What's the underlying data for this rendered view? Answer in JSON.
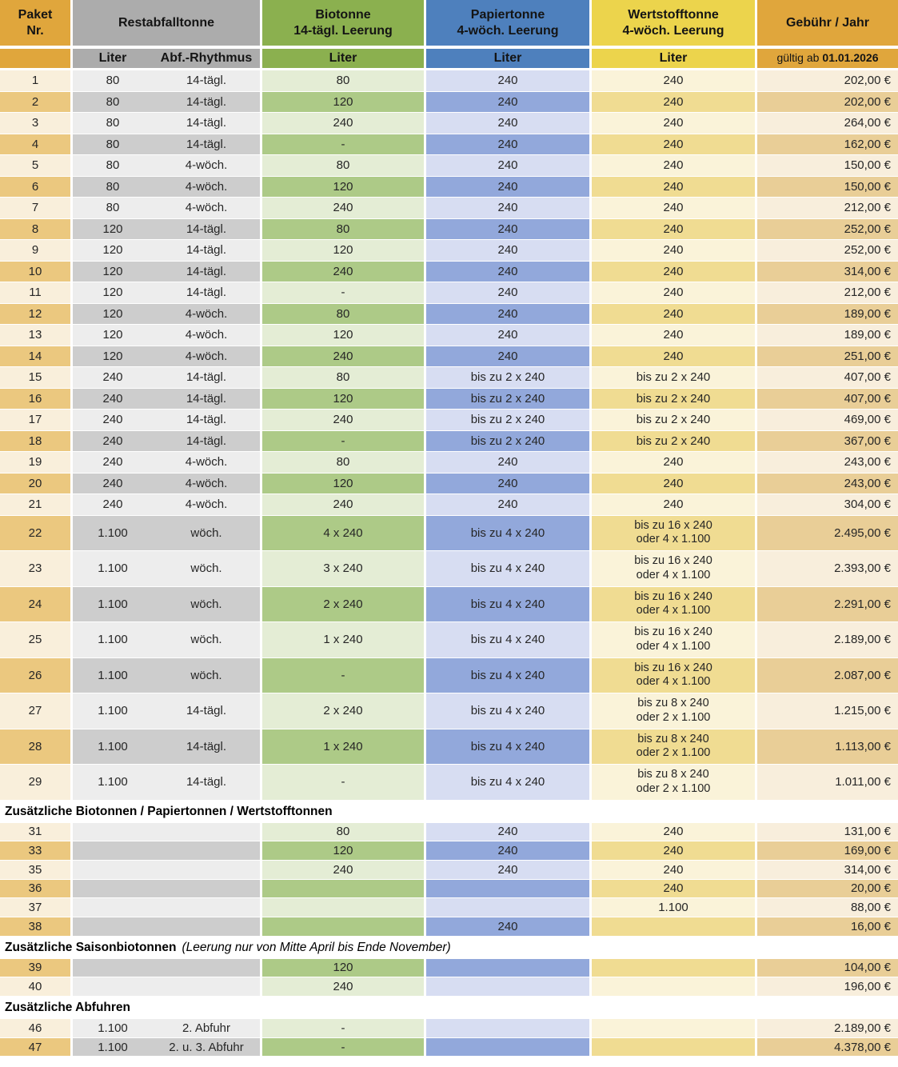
{
  "header": {
    "paket": "Paket\nNr.",
    "restabfall": "Restabfalltonne",
    "biotonne": "Biotonne\n14-tägl. Leerung",
    "papiertonne": "Papiertonne\n4-wöch. Leerung",
    "wertstofftonne": "Wertstofftonne\n4-wöch. Leerung",
    "gebuehr": "Gebühr / Jahr",
    "sub_rest_liter": "Liter",
    "sub_rest_rhythmus": "Abf.-Rhythmus",
    "sub_bio_liter": "Liter",
    "sub_papier_liter": "Liter",
    "sub_wert_liter": "Liter",
    "sub_gebuehr_prefix": "gültig ab",
    "sub_gebuehr_date": "01.01.2026"
  },
  "colors": {
    "header_orange": "#E0A63C",
    "header_gray": "#ACACAC",
    "header_green": "#8BB04F",
    "header_blue": "#4E80BD",
    "header_yellow": "#ECD44C",
    "paket_light": "#F9EFDB",
    "paket_dark": "#EBC87F",
    "gray_light": "#EDEDED",
    "gray_dark": "#CDCDCD",
    "bio_light": "#E4EDD5",
    "bio_dark": "#ADCA87",
    "papier_light": "#D7DDF2",
    "papier_dark": "#92A8DB",
    "wert_light": "#FAF3D9",
    "wert_dark": "#F0DC92",
    "fee_light": "#F8EEDC",
    "fee_dark": "#E9CE97"
  },
  "sections": [
    {
      "title": "",
      "note": "",
      "compact": false,
      "rows": [
        {
          "nr": "1",
          "liter": "80",
          "rhythmus": "14-tägl.",
          "bio": "80",
          "papier": "240",
          "wert": "240",
          "wert2": "",
          "fee": "202,00 €",
          "dark": false,
          "tall": false
        },
        {
          "nr": "2",
          "liter": "80",
          "rhythmus": "14-tägl.",
          "bio": "120",
          "papier": "240",
          "wert": "240",
          "wert2": "",
          "fee": "202,00 €",
          "dark": true,
          "tall": false
        },
        {
          "nr": "3",
          "liter": "80",
          "rhythmus": "14-tägl.",
          "bio": "240",
          "papier": "240",
          "wert": "240",
          "wert2": "",
          "fee": "264,00 €",
          "dark": false,
          "tall": false
        },
        {
          "nr": "4",
          "liter": "80",
          "rhythmus": "14-tägl.",
          "bio": "-",
          "papier": "240",
          "wert": "240",
          "wert2": "",
          "fee": "162,00 €",
          "dark": true,
          "tall": false
        },
        {
          "nr": "5",
          "liter": "80",
          "rhythmus": "4-wöch.",
          "bio": "80",
          "papier": "240",
          "wert": "240",
          "wert2": "",
          "fee": "150,00 €",
          "dark": false,
          "tall": false
        },
        {
          "nr": "6",
          "liter": "80",
          "rhythmus": "4-wöch.",
          "bio": "120",
          "papier": "240",
          "wert": "240",
          "wert2": "",
          "fee": "150,00 €",
          "dark": true,
          "tall": false
        },
        {
          "nr": "7",
          "liter": "80",
          "rhythmus": "4-wöch.",
          "bio": "240",
          "papier": "240",
          "wert": "240",
          "wert2": "",
          "fee": "212,00 €",
          "dark": false,
          "tall": false
        },
        {
          "nr": "8",
          "liter": "120",
          "rhythmus": "14-tägl.",
          "bio": "80",
          "papier": "240",
          "wert": "240",
          "wert2": "",
          "fee": "252,00 €",
          "dark": true,
          "tall": false
        },
        {
          "nr": "9",
          "liter": "120",
          "rhythmus": "14-tägl.",
          "bio": "120",
          "papier": "240",
          "wert": "240",
          "wert2": "",
          "fee": "252,00 €",
          "dark": false,
          "tall": false
        },
        {
          "nr": "10",
          "liter": "120",
          "rhythmus": "14-tägl.",
          "bio": "240",
          "papier": "240",
          "wert": "240",
          "wert2": "",
          "fee": "314,00 €",
          "dark": true,
          "tall": false
        },
        {
          "nr": "11",
          "liter": "120",
          "rhythmus": "14-tägl.",
          "bio": "-",
          "papier": "240",
          "wert": "240",
          "wert2": "",
          "fee": "212,00 €",
          "dark": false,
          "tall": false
        },
        {
          "nr": "12",
          "liter": "120",
          "rhythmus": "4-wöch.",
          "bio": "80",
          "papier": "240",
          "wert": "240",
          "wert2": "",
          "fee": "189,00 €",
          "dark": true,
          "tall": false
        },
        {
          "nr": "13",
          "liter": "120",
          "rhythmus": "4-wöch.",
          "bio": "120",
          "papier": "240",
          "wert": "240",
          "wert2": "",
          "fee": "189,00 €",
          "dark": false,
          "tall": false
        },
        {
          "nr": "14",
          "liter": "120",
          "rhythmus": "4-wöch.",
          "bio": "240",
          "papier": "240",
          "wert": "240",
          "wert2": "",
          "fee": "251,00 €",
          "dark": true,
          "tall": false
        },
        {
          "nr": "15",
          "liter": "240",
          "rhythmus": "14-tägl.",
          "bio": "80",
          "papier": "bis zu 2 x 240",
          "wert": "bis zu 2 x 240",
          "wert2": "",
          "fee": "407,00 €",
          "dark": false,
          "tall": false
        },
        {
          "nr": "16",
          "liter": "240",
          "rhythmus": "14-tägl.",
          "bio": "120",
          "papier": "bis zu 2 x 240",
          "wert": "bis zu 2 x 240",
          "wert2": "",
          "fee": "407,00 €",
          "dark": true,
          "tall": false
        },
        {
          "nr": "17",
          "liter": "240",
          "rhythmus": "14-tägl.",
          "bio": "240",
          "papier": "bis zu 2 x 240",
          "wert": "bis zu 2 x 240",
          "wert2": "",
          "fee": "469,00 €",
          "dark": false,
          "tall": false
        },
        {
          "nr": "18",
          "liter": "240",
          "rhythmus": "14-tägl.",
          "bio": "-",
          "papier": "bis zu 2 x 240",
          "wert": "bis zu 2 x 240",
          "wert2": "",
          "fee": "367,00 €",
          "dark": true,
          "tall": false
        },
        {
          "nr": "19",
          "liter": "240",
          "rhythmus": "4-wöch.",
          "bio": "80",
          "papier": "240",
          "wert": "240",
          "wert2": "",
          "fee": "243,00 €",
          "dark": false,
          "tall": false
        },
        {
          "nr": "20",
          "liter": "240",
          "rhythmus": "4-wöch.",
          "bio": "120",
          "papier": "240",
          "wert": "240",
          "wert2": "",
          "fee": "243,00 €",
          "dark": true,
          "tall": false
        },
        {
          "nr": "21",
          "liter": "240",
          "rhythmus": "4-wöch.",
          "bio": "240",
          "papier": "240",
          "wert": "240",
          "wert2": "",
          "fee": "304,00 €",
          "dark": false,
          "tall": false
        },
        {
          "nr": "22",
          "liter": "1.100",
          "rhythmus": "wöch.",
          "bio": "4 x 240",
          "papier": "bis zu 4 x 240",
          "wert": "bis zu 16 x 240",
          "wert2": "oder 4 x 1.100",
          "fee": "2.495,00 €",
          "dark": true,
          "tall": true
        },
        {
          "nr": "23",
          "liter": "1.100",
          "rhythmus": "wöch.",
          "bio": "3 x 240",
          "papier": "bis zu 4 x 240",
          "wert": "bis zu 16 x 240",
          "wert2": "oder 4 x 1.100",
          "fee": "2.393,00 €",
          "dark": false,
          "tall": true
        },
        {
          "nr": "24",
          "liter": "1.100",
          "rhythmus": "wöch.",
          "bio": "2 x 240",
          "papier": "bis zu 4 x 240",
          "wert": "bis zu 16 x 240",
          "wert2": "oder 4 x 1.100",
          "fee": "2.291,00 €",
          "dark": true,
          "tall": true
        },
        {
          "nr": "25",
          "liter": "1.100",
          "rhythmus": "wöch.",
          "bio": "1 x 240",
          "papier": "bis zu 4 x 240",
          "wert": "bis zu 16 x 240",
          "wert2": "oder 4 x 1.100",
          "fee": "2.189,00 €",
          "dark": false,
          "tall": true
        },
        {
          "nr": "26",
          "liter": "1.100",
          "rhythmus": "wöch.",
          "bio": "-",
          "papier": "bis zu 4 x 240",
          "wert": "bis zu 16 x 240",
          "wert2": "oder 4 x 1.100",
          "fee": "2.087,00 €",
          "dark": true,
          "tall": true
        },
        {
          "nr": "27",
          "liter": "1.100",
          "rhythmus": "14-tägl.",
          "bio": "2 x 240",
          "papier": "bis zu 4 x 240",
          "wert": "bis zu 8 x 240",
          "wert2": "oder 2 x 1.100",
          "fee": "1.215,00 €",
          "dark": false,
          "tall": true
        },
        {
          "nr": "28",
          "liter": "1.100",
          "rhythmus": "14-tägl.",
          "bio": "1 x 240",
          "papier": "bis zu 4 x 240",
          "wert": "bis zu 8 x 240",
          "wert2": "oder 2 x 1.100",
          "fee": "1.113,00 €",
          "dark": true,
          "tall": true
        },
        {
          "nr": "29",
          "liter": "1.100",
          "rhythmus": "14-tägl.",
          "bio": "-",
          "papier": "bis zu 4 x 240",
          "wert": "bis zu 8 x 240",
          "wert2": "oder 2 x 1.100",
          "fee": "1.011,00 €",
          "dark": false,
          "tall": true
        }
      ]
    },
    {
      "title": "Zusätzliche Biotonnen / Papiertonnen / Wertstofftonnen",
      "note": "",
      "compact": true,
      "rows": [
        {
          "nr": "31",
          "liter": "",
          "rhythmus": "",
          "bio": "80",
          "papier": "240",
          "wert": "240",
          "wert2": "",
          "fee": "131,00 €",
          "dark": false,
          "tall": false
        },
        {
          "nr": "33",
          "liter": "",
          "rhythmus": "",
          "bio": "120",
          "papier": "240",
          "wert": "240",
          "wert2": "",
          "fee": "169,00 €",
          "dark": true,
          "tall": false
        },
        {
          "nr": "35",
          "liter": "",
          "rhythmus": "",
          "bio": "240",
          "papier": "240",
          "wert": "240",
          "wert2": "",
          "fee": "314,00 €",
          "dark": false,
          "tall": false
        },
        {
          "nr": "36",
          "liter": "",
          "rhythmus": "",
          "bio": "",
          "papier": "",
          "wert": "240",
          "wert2": "",
          "fee": "20,00 €",
          "dark": true,
          "tall": false
        },
        {
          "nr": "37",
          "liter": "",
          "rhythmus": "",
          "bio": "",
          "papier": "",
          "wert": "1.100",
          "wert2": "",
          "fee": "88,00 €",
          "dark": false,
          "tall": false
        },
        {
          "nr": "38",
          "liter": "",
          "rhythmus": "",
          "bio": "",
          "papier": "240",
          "wert": "",
          "wert2": "",
          "fee": "16,00 €",
          "dark": true,
          "tall": false
        }
      ]
    },
    {
      "title": "Zusätzliche Saisonbiotonnen",
      "note": "(Leerung nur von Mitte April bis Ende November)",
      "compact": true,
      "rows": [
        {
          "nr": "39",
          "liter": "",
          "rhythmus": "",
          "bio": "120",
          "papier": "",
          "wert": "",
          "wert2": "",
          "fee": "104,00 €",
          "dark": true,
          "tall": false
        },
        {
          "nr": "40",
          "liter": "",
          "rhythmus": "",
          "bio": "240",
          "papier": "",
          "wert": "",
          "wert2": "",
          "fee": "196,00 €",
          "dark": false,
          "tall": false
        }
      ]
    },
    {
      "title": "Zusätzliche Abfuhren",
      "note": "",
      "compact": true,
      "rows": [
        {
          "nr": "46",
          "liter": "1.100",
          "rhythmus": "2. Abfuhr",
          "bio": "-",
          "papier": "",
          "wert": "",
          "wert2": "",
          "fee": "2.189,00 €",
          "dark": false,
          "tall": false
        },
        {
          "nr": "47",
          "liter": "1.100",
          "rhythmus": "2. u. 3. Abfuhr",
          "bio": "-",
          "papier": "",
          "wert": "",
          "wert2": "",
          "fee": "4.378,00 €",
          "dark": true,
          "tall": false
        }
      ]
    }
  ]
}
